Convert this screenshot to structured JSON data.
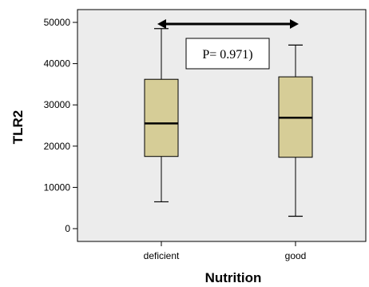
{
  "chart_data": {
    "type": "boxplot",
    "xlabel": "Nutrition",
    "ylabel": "TLR2",
    "ylim": [
      0,
      50000
    ],
    "yticks": [
      0,
      10000,
      20000,
      30000,
      40000,
      50000
    ],
    "ytick_labels": [
      "0",
      "10000",
      "20000",
      "30000",
      "40000",
      "50000"
    ],
    "categories": [
      "deficient",
      "good"
    ],
    "boxes": [
      {
        "category": "deficient",
        "min": 6500,
        "q1": 17500,
        "median": 25500,
        "q3": 36200,
        "max": 48500
      },
      {
        "category": "good",
        "min": 3000,
        "q1": 17300,
        "median": 26900,
        "q3": 36800,
        "max": 44500
      }
    ],
    "annotation": "P= 0.971)",
    "comparison_arrow": [
      "deficient",
      "good"
    ],
    "colors": {
      "box_fill": "#d6cd97",
      "plot_background": "#ececec",
      "stroke": "#000000"
    },
    "grid": false
  }
}
